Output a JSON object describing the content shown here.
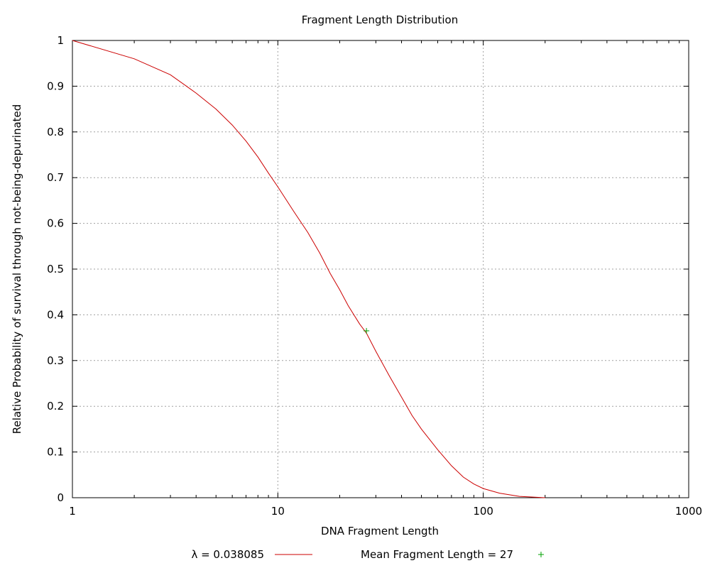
{
  "chart_data": {
    "type": "line",
    "title": "Fragment Length Distribution",
    "xlabel": "DNA Fragment Length",
    "ylabel": "Relative Probability of survival through not-being-depurinated",
    "xscale": "log",
    "xlim": [
      1,
      1000
    ],
    "ylim": [
      0,
      1
    ],
    "xticks": [
      1,
      10,
      100,
      1000
    ],
    "xtick_labels": [
      "1",
      "10",
      "100",
      "1000"
    ],
    "yticks": [
      0,
      0.1,
      0.2,
      0.3,
      0.4,
      0.5,
      0.6,
      0.7,
      0.8,
      0.9,
      1
    ],
    "ytick_labels": [
      "0",
      "0.1",
      "0.2",
      "0.3",
      "0.4",
      "0.5",
      "0.6",
      "0.7",
      "0.8",
      "0.9",
      "1"
    ],
    "grid": true,
    "legend_position": "bottom",
    "series": [
      {
        "name": "λ = 0.038085",
        "color": "#cc0000",
        "style": "line",
        "x": [
          1,
          2,
          3,
          4,
          5,
          6,
          7,
          8,
          9,
          10,
          12,
          14,
          16,
          18,
          20,
          22,
          25,
          27,
          30,
          35,
          40,
          45,
          50,
          60,
          70,
          80,
          90,
          100,
          120,
          150,
          200
        ],
        "y": [
          1,
          0.96,
          0.925,
          0.885,
          0.85,
          0.815,
          0.78,
          0.745,
          0.71,
          0.68,
          0.625,
          0.58,
          0.535,
          0.49,
          0.455,
          0.42,
          0.38,
          0.36,
          0.32,
          0.265,
          0.22,
          0.18,
          0.15,
          0.105,
          0.07,
          0.045,
          0.03,
          0.02,
          0.01,
          0.003,
          0
        ]
      },
      {
        "name": "Mean Fragment Length = 27",
        "color": "#00a000",
        "style": "point",
        "marker": "+",
        "x": [
          27
        ],
        "y": [
          0.365
        ]
      }
    ]
  }
}
